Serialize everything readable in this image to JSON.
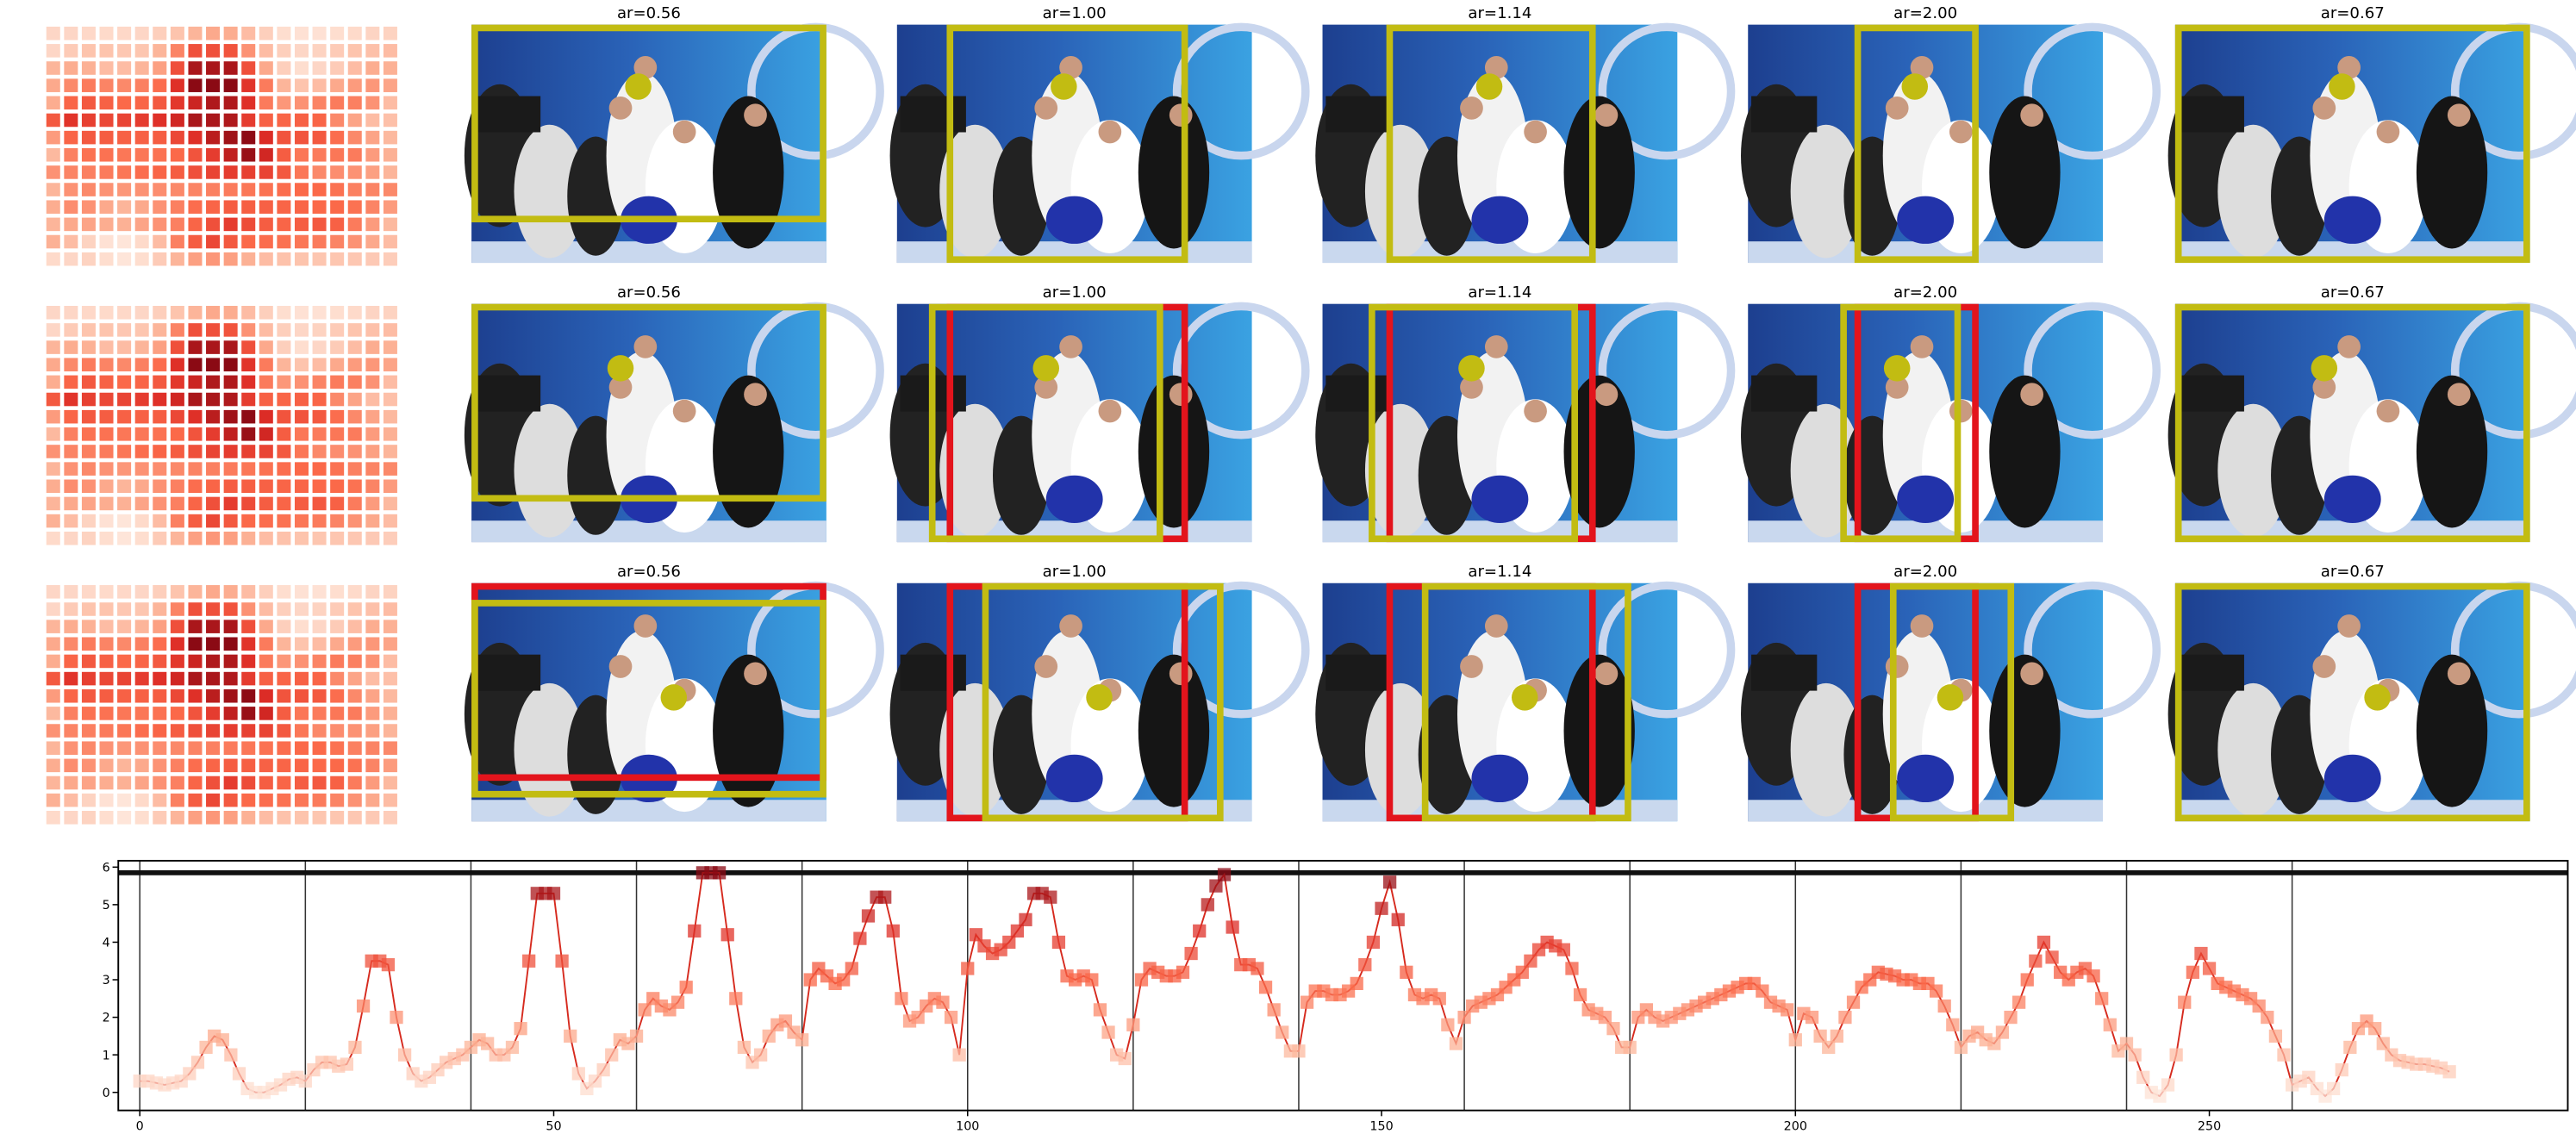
{
  "crops": {
    "titles": [
      [
        "ar=0.56",
        "ar=1.00",
        "ar=1.14",
        "ar=2.00",
        "ar=0.67"
      ],
      [
        "ar=0.56",
        "ar=1.00",
        "ar=1.14",
        "ar=2.00",
        "ar=0.67"
      ],
      [
        "ar=0.56",
        "ar=1.00",
        "ar=1.14",
        "ar=2.00",
        "ar=0.67"
      ]
    ]
  },
  "chart_data": {
    "type": "line",
    "x": [
      0,
      1,
      2,
      3,
      4,
      5,
      6,
      7,
      8,
      9,
      10,
      11,
      12,
      13,
      14,
      15,
      16,
      17,
      18,
      19,
      20,
      21,
      22,
      23,
      24,
      25,
      26,
      27,
      28,
      29,
      30,
      31,
      32,
      33,
      34,
      35,
      36,
      37,
      38,
      39,
      40,
      41,
      42,
      43,
      44,
      45,
      46,
      47,
      48,
      49,
      50,
      51,
      52,
      53,
      54,
      55,
      56,
      57,
      58,
      59,
      60,
      61,
      62,
      63,
      64,
      65,
      66,
      67,
      68,
      69,
      70,
      71,
      72,
      73,
      74,
      75,
      76,
      77,
      78,
      79,
      80,
      81,
      82,
      83,
      84,
      85,
      86,
      87,
      88,
      89,
      90,
      91,
      92,
      93,
      94,
      95,
      96,
      97,
      98,
      99,
      100,
      101,
      102,
      103,
      104,
      105,
      106,
      107,
      108,
      109,
      110,
      111,
      112,
      113,
      114,
      115,
      116,
      117,
      118,
      119,
      120,
      121,
      122,
      123,
      124,
      125,
      126,
      127,
      128,
      129,
      130,
      131,
      132,
      133,
      134,
      135,
      136,
      137,
      138,
      139,
      140,
      141,
      142,
      143,
      144,
      145,
      146,
      147,
      148,
      149,
      150,
      151,
      152,
      153,
      154,
      155,
      156,
      157,
      158,
      159,
      160,
      161,
      162,
      163,
      164,
      165,
      166,
      167,
      168,
      169,
      170,
      171,
      172,
      173,
      174,
      175,
      176,
      177,
      178,
      179,
      180,
      181,
      182,
      183,
      184,
      185,
      186,
      187,
      188,
      189,
      190,
      191,
      192,
      193,
      194,
      195,
      196,
      197,
      198,
      199,
      200,
      201,
      202,
      203,
      204,
      205,
      206,
      207,
      208,
      209,
      210,
      211,
      212,
      213,
      214,
      215,
      216,
      217,
      218,
      219,
      220,
      221,
      222,
      223,
      224,
      225,
      226,
      227,
      228,
      229,
      230,
      231,
      232,
      233,
      234,
      235,
      236,
      237,
      238,
      239,
      240,
      241,
      242,
      243,
      244,
      245,
      246,
      247,
      248,
      249,
      250,
      251,
      252,
      253,
      254,
      255,
      256,
      257,
      258,
      259,
      260,
      261,
      262,
      263,
      264,
      265,
      266,
      267,
      268,
      269,
      270,
      271,
      272,
      273,
      274,
      275,
      276,
      277,
      278,
      279
    ],
    "values": [
      0.3,
      0.3,
      0.25,
      0.2,
      0.25,
      0.3,
      0.5,
      0.8,
      1.2,
      1.5,
      1.4,
      1.0,
      0.5,
      0.1,
      0.0,
      0.0,
      0.1,
      0.2,
      0.35,
      0.4,
      0.3,
      0.6,
      0.8,
      0.8,
      0.7,
      0.75,
      1.2,
      2.3,
      3.5,
      3.5,
      3.4,
      2.0,
      1.0,
      0.5,
      0.3,
      0.4,
      0.6,
      0.8,
      0.9,
      1.0,
      1.2,
      1.4,
      1.3,
      1.0,
      1.0,
      1.2,
      1.7,
      3.5,
      5.3,
      5.3,
      5.3,
      3.5,
      1.5,
      0.5,
      0.1,
      0.3,
      0.6,
      1.0,
      1.4,
      1.3,
      1.5,
      2.2,
      2.5,
      2.3,
      2.2,
      2.4,
      2.8,
      4.3,
      5.85,
      5.85,
      5.85,
      4.2,
      2.5,
      1.2,
      0.8,
      1.0,
      1.5,
      1.8,
      1.9,
      1.6,
      1.4,
      3.0,
      3.3,
      3.1,
      2.9,
      3.0,
      3.3,
      4.1,
      4.7,
      5.2,
      5.2,
      4.3,
      2.5,
      1.9,
      2.0,
      2.3,
      2.5,
      2.4,
      2.0,
      1.0,
      3.3,
      4.2,
      3.9,
      3.7,
      3.8,
      4.0,
      4.3,
      4.6,
      5.3,
      5.3,
      5.2,
      4.0,
      3.1,
      3.0,
      3.1,
      3.0,
      2.2,
      1.6,
      1.0,
      0.9,
      1.8,
      3.0,
      3.3,
      3.2,
      3.1,
      3.1,
      3.2,
      3.7,
      4.3,
      5.0,
      5.5,
      5.8,
      4.4,
      3.4,
      3.4,
      3.3,
      2.8,
      2.2,
      1.6,
      1.1,
      1.1,
      2.4,
      2.7,
      2.7,
      2.6,
      2.6,
      2.7,
      2.9,
      3.4,
      4.0,
      4.9,
      5.6,
      4.6,
      3.2,
      2.6,
      2.5,
      2.6,
      2.5,
      1.8,
      1.3,
      2.0,
      2.3,
      2.4,
      2.5,
      2.6,
      2.8,
      3.0,
      3.2,
      3.5,
      3.8,
      4.0,
      3.9,
      3.8,
      3.3,
      2.6,
      2.2,
      2.1,
      2.0,
      1.7,
      1.2,
      1.2,
      2.0,
      2.2,
      2.0,
      1.9,
      2.0,
      2.1,
      2.2,
      2.3,
      2.4,
      2.5,
      2.6,
      2.7,
      2.8,
      2.9,
      2.9,
      2.7,
      2.4,
      2.3,
      2.2,
      1.4,
      2.1,
      2.0,
      1.5,
      1.2,
      1.5,
      2.0,
      2.4,
      2.8,
      3.0,
      3.2,
      3.15,
      3.1,
      3.0,
      3.0,
      2.9,
      2.9,
      2.7,
      2.3,
      1.8,
      1.2,
      1.5,
      1.6,
      1.4,
      1.3,
      1.6,
      2.0,
      2.4,
      3.0,
      3.5,
      4.0,
      3.6,
      3.2,
      3.0,
      3.2,
      3.3,
      3.1,
      2.5,
      1.8,
      1.1,
      1.3,
      1.0,
      0.4,
      0.0,
      -0.1,
      0.2,
      1.0,
      2.4,
      3.2,
      3.7,
      3.3,
      2.9,
      2.8,
      2.7,
      2.6,
      2.5,
      2.3,
      2.0,
      1.5,
      1.0,
      0.2,
      0.3,
      0.4,
      0.1,
      -0.1,
      0.1,
      0.6,
      1.2,
      1.7,
      1.9,
      1.7,
      1.3,
      1.0,
      0.85,
      0.8,
      0.75,
      0.75,
      0.7,
      0.65,
      0.55
    ],
    "color": "#d62a1e",
    "marker_colormap": [
      "#fee5d9",
      "#fcae91",
      "#fb6a4a",
      "#de2d26",
      "#8b0a14"
    ],
    "xlim": [
      -2.6,
      293.3
    ],
    "ylim": [
      -0.48,
      6.17
    ],
    "xticks": [
      0,
      50,
      100,
      150,
      200,
      250
    ],
    "yticks": [
      0,
      1,
      2,
      3,
      4,
      5,
      6
    ],
    "vlines": [
      0,
      20,
      40,
      60,
      80,
      100,
      120,
      140,
      160,
      180,
      200,
      220,
      240,
      260
    ],
    "hline": 5.85,
    "heatmap_columns": 20
  }
}
